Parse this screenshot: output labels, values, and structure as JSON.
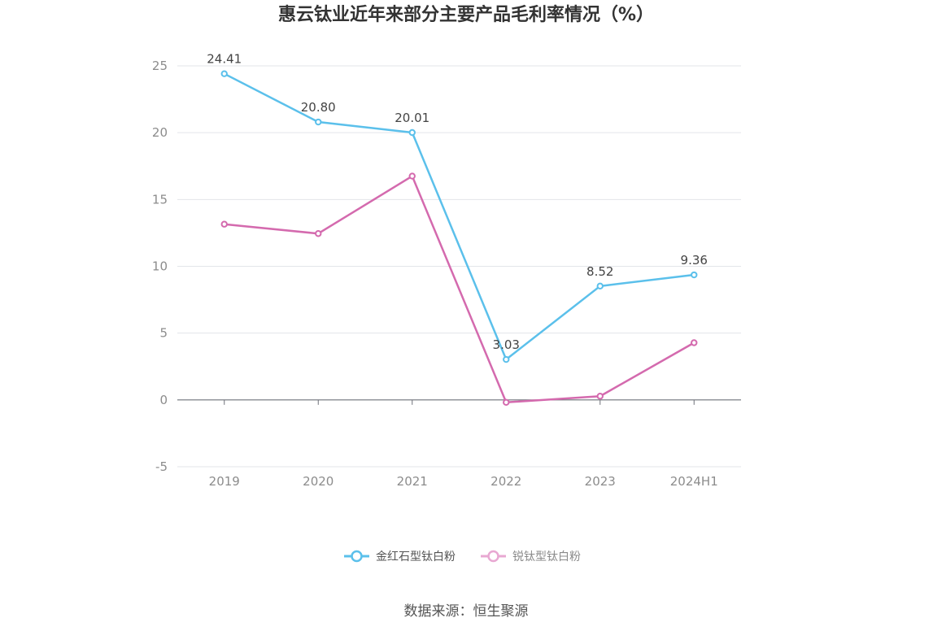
{
  "chart_data": {
    "type": "line",
    "title": "惠云钛业近年来部分主要产品毛利率情况（%）",
    "categories": [
      "2019",
      "2020",
      "2021",
      "2022",
      "2023",
      "2024H1"
    ],
    "ylim": [
      -5,
      25
    ],
    "yticks": [
      "25",
      "20",
      "15",
      "10",
      "5",
      "0",
      "-5"
    ],
    "grid": true,
    "legend_position": "bottom-center",
    "series": [
      {
        "name": "金红石型钛白粉",
        "color": "#5bc0eb",
        "values": [
          24.41,
          20.8,
          20.01,
          3.03,
          8.52,
          9.36
        ],
        "labels": [
          "24.41",
          "20.80",
          "20.01",
          "3.03",
          "8.52",
          "9.36"
        ]
      },
      {
        "name": "锐钛型钛白粉",
        "color": "#d46aae",
        "values": [
          13.15,
          12.45,
          16.75,
          -0.18,
          0.28,
          4.28
        ]
      }
    ]
  },
  "source": "数据来源：恒生聚源"
}
